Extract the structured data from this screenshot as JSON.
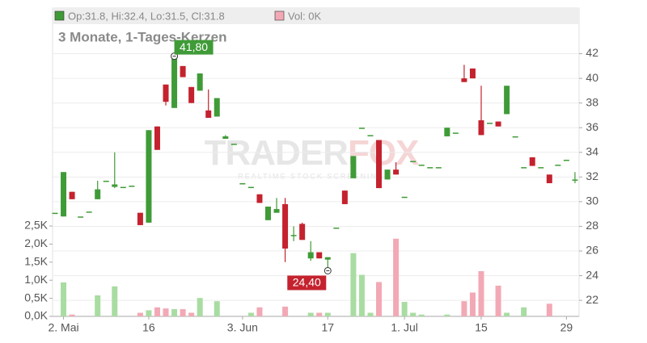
{
  "chart_data": {
    "type": "candlestick",
    "title": "3 Monate, 1-Tages-Kerzen",
    "legend_price": "Op:31.8, Hi:32.4, Lo:31.5, Cl:31.8",
    "legend_volume": "Vol: 0K",
    "watermark": [
      "TRADER",
      "FOX"
    ],
    "watermark_sub": "REALTIME STOCK SCREENING",
    "annotations": [
      {
        "text": "41,80",
        "value": 41.8
      },
      {
        "text": "24,40",
        "value": 24.4
      }
    ],
    "categories": [
      null,
      "2. Mai",
      null,
      null,
      null,
      null,
      null,
      null,
      null,
      null,
      null,
      "16",
      null,
      null,
      null,
      null,
      null,
      null,
      null,
      null,
      null,
      null,
      "3. Jun",
      null,
      null,
      null,
      null,
      null,
      null,
      null,
      null,
      null,
      "17",
      null,
      null,
      null,
      null,
      null,
      null,
      null,
      null,
      "1. Jul",
      null,
      null,
      null,
      null,
      null,
      null,
      null,
      null,
      "15",
      null,
      null,
      null,
      null,
      null,
      null,
      null,
      null,
      null,
      "29",
      null
    ],
    "open": [
      29.1,
      28.8,
      30.8,
      28.8,
      29.2,
      30.2,
      31.7,
      31.2,
      31.2,
      31.3,
      29.1,
      28.3,
      36.1,
      39.5,
      37.6,
      41.0,
      39.3,
      39.0,
      37.4,
      36.9,
      35.1,
      34.7,
      31.5,
      31.2,
      30.6,
      28.5,
      29.1,
      29.8,
      27.3,
      28.2,
      25.4,
      25.9,
      25.3,
      27.9,
      30.9,
      31.9,
      36.0,
      35.4,
      35.0,
      31.8,
      32.6,
      30.4,
      33.3,
      33.0,
      32.8,
      32.8,
      35.3,
      35.6,
      40.0,
      40.8,
      36.6,
      36.4,
      36.5,
      37.1,
      35.3,
      32.8,
      33.6,
      32.8,
      32.2,
      33.0,
      33.4,
      31.8
    ],
    "high": [
      29.1,
      32.4,
      30.8,
      28.8,
      29.2,
      31.7,
      31.7,
      34.0,
      31.2,
      31.3,
      29.1,
      35.8,
      36.1,
      39.5,
      41.8,
      41.0,
      39.3,
      40.4,
      39.1,
      38.4,
      35.4,
      34.7,
      31.5,
      31.2,
      30.6,
      29.6,
      30.3,
      30.3,
      28.0,
      28.3,
      26.8,
      25.9,
      25.5,
      27.9,
      30.9,
      33.7,
      36.0,
      35.4,
      35.0,
      32.6,
      33.2,
      30.4,
      33.3,
      33.0,
      32.8,
      32.8,
      36.0,
      35.6,
      41.1,
      40.8,
      39.4,
      36.4,
      36.5,
      39.4,
      35.3,
      32.8,
      33.6,
      32.8,
      32.2,
      33.0,
      33.4,
      32.4
    ],
    "low": [
      29.1,
      28.8,
      30.2,
      28.8,
      29.2,
      30.2,
      31.7,
      31.1,
      31.2,
      31.3,
      28.1,
      28.3,
      34.2,
      37.8,
      37.6,
      40.1,
      38.0,
      39.0,
      36.8,
      36.9,
      35.1,
      34.7,
      31.5,
      31.2,
      29.9,
      28.5,
      29.1,
      25.1,
      26.8,
      26.9,
      25.2,
      25.4,
      24.4,
      27.9,
      29.8,
      31.9,
      36.0,
      35.4,
      31.1,
      31.8,
      32.2,
      30.4,
      33.3,
      33.0,
      32.8,
      32.8,
      35.3,
      35.6,
      39.7,
      40.0,
      35.4,
      36.4,
      36.1,
      37.1,
      35.3,
      32.8,
      32.9,
      32.8,
      31.5,
      33.0,
      33.4,
      31.5
    ],
    "close": [
      29.1,
      32.4,
      30.2,
      28.8,
      29.2,
      31.0,
      31.7,
      31.4,
      31.2,
      31.3,
      28.1,
      35.8,
      34.2,
      38.1,
      41.6,
      40.1,
      38.0,
      40.4,
      36.8,
      38.4,
      35.3,
      34.7,
      31.5,
      31.2,
      29.9,
      29.6,
      29.4,
      26.2,
      27.3,
      26.9,
      25.9,
      25.4,
      25.5,
      27.9,
      29.8,
      33.7,
      36.0,
      35.4,
      31.1,
      32.6,
      32.2,
      30.4,
      33.3,
      33.0,
      32.8,
      32.8,
      36.0,
      35.6,
      39.7,
      40.0,
      35.4,
      36.4,
      36.1,
      39.4,
      35.3,
      32.8,
      32.9,
      32.8,
      31.5,
      33.0,
      33.4,
      31.8
    ],
    "volume": [
      0,
      0.94,
      0.05,
      0,
      0,
      0.58,
      0,
      0.83,
      0,
      0,
      0.1,
      0.17,
      0.25,
      0.22,
      0.2,
      0.2,
      0.1,
      0.51,
      0,
      0.42,
      0,
      0,
      0,
      0.1,
      0.25,
      0,
      0,
      0.27,
      0,
      0,
      0.1,
      0.1,
      0.1,
      0,
      0,
      1.75,
      1.15,
      0.1,
      0.95,
      0,
      2.15,
      0.4,
      0.1,
      0.05,
      0,
      0,
      0.05,
      0,
      0.42,
      0.66,
      1.25,
      0,
      0.85,
      0.1,
      0,
      0.25,
      0,
      0,
      0.35,
      0,
      0,
      0
    ],
    "ylim": [
      20.7,
      45.7
    ],
    "yticks": [
      22,
      24,
      26,
      28,
      30,
      32,
      34,
      36,
      38,
      40,
      42
    ],
    "y2lim": [
      0,
      8.53
    ],
    "y2ticks": [
      {
        "value": 0,
        "label": "0,0K"
      },
      {
        "value": 0.5,
        "label": "0,5K"
      },
      {
        "value": 1,
        "label": "1,0K"
      },
      {
        "value": 1.5,
        "label": "1,5K"
      },
      {
        "value": 2,
        "label": "2,0K"
      },
      {
        "value": 2.5,
        "label": "2,5K"
      }
    ],
    "up_color": "#3f9b37",
    "down_color": "#c4222e",
    "up_volume_color": "#a9dca2",
    "down_volume_color": "#f2a9b5",
    "grid": true
  }
}
